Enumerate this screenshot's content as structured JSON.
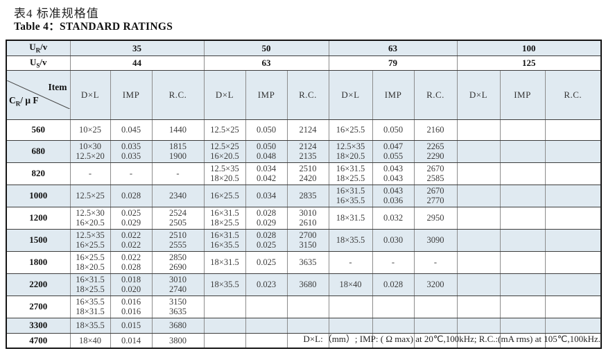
{
  "page": {
    "title_zh": "表4  标准规格值",
    "title_en": "Table 4：STANDARD RATINGS",
    "footnote": "D×L:（mm）; IMP: ( Ω max) at 20℃,100kHz; R.C.:(mA rms) at 105℃,100kHz."
  },
  "table": {
    "row_labels": {
      "ur": {
        "pre": "U",
        "sub": "R",
        "post": "/v"
      },
      "us": {
        "pre": "U",
        "sub": "S",
        "post": "/v"
      },
      "corner": {
        "top": "Item",
        "bl_pre": "C",
        "bl_sub": "R",
        "bl_post": "/ μ F"
      }
    },
    "rated_voltages": [
      "35",
      "50",
      "63",
      "100"
    ],
    "surge_voltages": [
      "44",
      "63",
      "79",
      "125"
    ],
    "sub_columns": [
      "D×L",
      "IMP",
      "R.C."
    ],
    "rows": [
      {
        "capacitance": "560",
        "cells": [
          "10×25",
          "0.045",
          "1440",
          "12.5×25",
          "0.050",
          "2124",
          "16×25.5",
          "0.050",
          "2160",
          "",
          "",
          ""
        ]
      },
      {
        "capacitance": "680",
        "cells": [
          "10×30\n12.5×20",
          "0.035\n0.035",
          "1815\n1900",
          "12.5×25\n16×20.5",
          "0.050\n0.048",
          "2124\n2135",
          "12.5×35\n18×20.5",
          "0.047\n0.055",
          "2265\n2290",
          "",
          "",
          ""
        ]
      },
      {
        "capacitance": "820",
        "cells": [
          "-",
          "-",
          "-",
          "12.5×35\n18×20.5",
          "0.034\n0.042",
          "2510\n2420",
          "16×31.5\n18×25.5",
          "0.043\n0.043",
          "2670\n2585",
          "",
          "",
          ""
        ]
      },
      {
        "capacitance": "1000",
        "cells": [
          "12.5×25",
          "0.028",
          "2340",
          "16×25.5",
          "0.034",
          "2835",
          "16×31.5\n16×35.5",
          "0.043\n0.036",
          "2670\n2770",
          "",
          "",
          ""
        ]
      },
      {
        "capacitance": "1200",
        "cells": [
          "12.5×30\n16×20.5",
          "0.025\n0.029",
          "2524\n2505",
          "16×31.5\n18×25.5",
          "0.028\n0.029",
          "3010\n2610",
          "18×31.5",
          "0.032",
          "2950",
          "",
          "",
          ""
        ]
      },
      {
        "capacitance": "1500",
        "cells": [
          "12.5×35\n16×25.5",
          "0.022\n0.022",
          "2510\n2555",
          "16×31.5\n16×35.5",
          "0.028\n0.025",
          "2700\n3150",
          "18×35.5",
          "0.030",
          "3090",
          "",
          "",
          ""
        ]
      },
      {
        "capacitance": "1800",
        "cells": [
          "16×25.5\n18×20.5",
          "0.022\n0.028",
          "2850\n2690",
          "18×31.5",
          "0.025",
          "3635",
          "-",
          "-",
          "-",
          "",
          "",
          ""
        ]
      },
      {
        "capacitance": "2200",
        "cells": [
          "16×31.5\n18×25.5",
          "0.018\n0.020",
          "3010\n2740",
          "18×35.5",
          "0.023",
          "3680",
          "18×40",
          "0.028",
          "3200",
          "",
          "",
          ""
        ]
      },
      {
        "capacitance": "2700",
        "cells": [
          "16×35.5\n18×31.5",
          "0.016\n0.016",
          "3150\n3635",
          "",
          "",
          "",
          "",
          "",
          "",
          "",
          "",
          ""
        ]
      },
      {
        "capacitance": "3300",
        "cells": [
          "18×35.5",
          "0.015",
          "3680",
          "",
          "",
          "",
          "",
          "",
          "",
          "",
          "",
          ""
        ]
      },
      {
        "capacitance": "4700",
        "cells": [
          "18×40",
          "0.014",
          "3800",
          "",
          "",
          "",
          "",
          "",
          "",
          "",
          "",
          ""
        ]
      }
    ],
    "colors": {
      "shaded_row": "#e0eaf1",
      "grid_vertical": "#8c8c8c",
      "grid_horizontal": "#3c3c3c",
      "outer_border": "#151515"
    }
  }
}
